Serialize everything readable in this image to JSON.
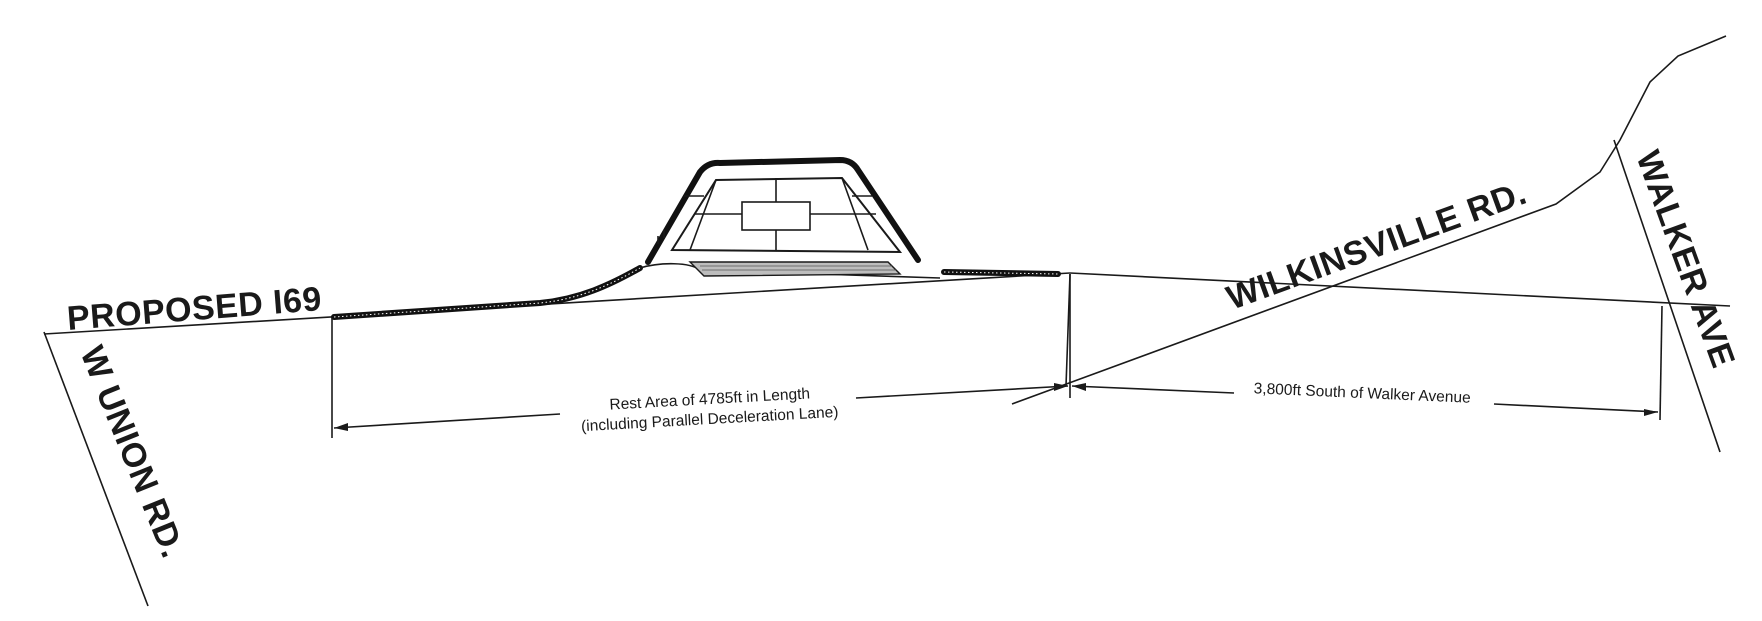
{
  "roads": {
    "proposed_i69": "PROPOSED I69",
    "w_union_rd": "W UNION RD.",
    "wilkinsville_rd": "WILKINSVILLE RD.",
    "walker_ave": "WALKER AVE"
  },
  "dimensions": {
    "rest_area_line1": "Rest Area of 4785ft in Length",
    "rest_area_line2": "(including Parallel Deceleration Lane)",
    "south_of_walker": "3,800ft South of Walker Avenue"
  },
  "colors": {
    "linework": "#1a1a1a",
    "background": "#ffffff"
  }
}
